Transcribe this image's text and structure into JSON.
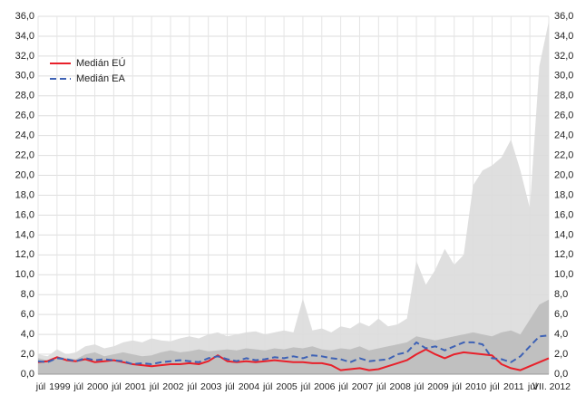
{
  "chart_data": {
    "type": "line",
    "categories": [
      "júl",
      null,
      "1999",
      null,
      "júl",
      null,
      "2000",
      null,
      "júl",
      null,
      "2001",
      null,
      "júl",
      null,
      "2002",
      null,
      "júl",
      null,
      "2003",
      null,
      "júl",
      null,
      "2004",
      null,
      "júl",
      null,
      "2005",
      null,
      "júl",
      null,
      "2006",
      null,
      "júl",
      null,
      "2007",
      null,
      "júl",
      null,
      "2008",
      null,
      "júl",
      null,
      "2009",
      null,
      "júl",
      null,
      "2010",
      null,
      "júl",
      null,
      "2011",
      null,
      "júl",
      null,
      "VII. 2012"
    ],
    "ylim": [
      0,
      36
    ],
    "yticks": [
      {
        "value": 0,
        "label": "0,0"
      },
      {
        "value": 2,
        "label": "2,0"
      },
      {
        "value": 4,
        "label": "4,0"
      },
      {
        "value": 6,
        "label": "6,0"
      },
      {
        "value": 8,
        "label": "8,0"
      },
      {
        "value": 10,
        "label": "10,0"
      },
      {
        "value": 12,
        "label": "12,0"
      },
      {
        "value": 14,
        "label": "14,0"
      },
      {
        "value": 16,
        "label": "16,0"
      },
      {
        "value": 18,
        "label": "18,0"
      },
      {
        "value": 20,
        "label": "20,0"
      },
      {
        "value": 22,
        "label": "22,0"
      },
      {
        "value": 24,
        "label": "24,0"
      },
      {
        "value": 26,
        "label": "26,0"
      },
      {
        "value": 28,
        "label": "28,0"
      },
      {
        "value": 30,
        "label": "30,0"
      },
      {
        "value": 32,
        "label": "32,0"
      },
      {
        "value": 34,
        "label": "34,0"
      },
      {
        "value": 36,
        "label": "36,0"
      }
    ],
    "y2lim": [
      0,
      36
    ],
    "y2ticks": [
      {
        "value": 0,
        "label": "0,0"
      },
      {
        "value": 2,
        "label": "2,0"
      },
      {
        "value": 4,
        "label": "4,0"
      },
      {
        "value": 6,
        "label": "6,0"
      },
      {
        "value": 8,
        "label": "8,0"
      },
      {
        "value": 10,
        "label": "10,0"
      },
      {
        "value": 12,
        "label": "12,0"
      },
      {
        "value": 14,
        "label": "14,0"
      },
      {
        "value": 16,
        "label": "16,0"
      },
      {
        "value": 18,
        "label": "18,0"
      },
      {
        "value": 20,
        "label": "20,0"
      },
      {
        "value": 22,
        "label": "22,0"
      },
      {
        "value": 24,
        "label": "24,0"
      },
      {
        "value": 26,
        "label": "26,0"
      },
      {
        "value": 28,
        "label": "28,0"
      },
      {
        "value": 30,
        "label": "30,0"
      },
      {
        "value": 32,
        "label": "32,0"
      },
      {
        "value": 34,
        "label": "34,0"
      },
      {
        "value": 36,
        "label": "36,0"
      }
    ],
    "grid": true,
    "legend": "upper-left",
    "areas": [
      {
        "color": "#dcdcdc",
        "values": [
          2.0,
          1.8,
          2.5,
          2.0,
          2.2,
          2.8,
          3.0,
          2.6,
          2.8,
          3.2,
          3.4,
          3.2,
          3.6,
          3.4,
          3.3,
          3.6,
          3.8,
          3.6,
          4.0,
          4.2,
          3.8,
          4.0,
          4.2,
          4.3,
          4.0,
          4.2,
          4.4,
          4.2,
          7.6,
          4.4,
          4.6,
          4.2,
          4.8,
          4.6,
          5.2,
          4.8,
          5.6,
          4.8,
          5.0,
          5.6,
          11.4,
          9.0,
          10.5,
          12.6,
          11.0,
          12.0,
          19.0,
          20.5,
          21.0,
          21.8,
          23.6,
          20.5,
          16.7,
          31.0,
          35.5
        ]
      },
      {
        "color": "#bdbdbd",
        "values": [
          1.6,
          1.4,
          1.8,
          1.6,
          1.5,
          2.0,
          2.2,
          1.8,
          2.0,
          2.2,
          2.0,
          1.8,
          1.9,
          2.2,
          2.4,
          2.2,
          2.3,
          2.5,
          2.3,
          2.4,
          2.5,
          2.4,
          2.6,
          2.5,
          2.4,
          2.6,
          2.5,
          2.7,
          2.6,
          2.8,
          2.5,
          2.4,
          2.6,
          2.5,
          2.8,
          2.4,
          2.6,
          2.8,
          3.0,
          3.2,
          3.8,
          3.6,
          3.4,
          3.6,
          3.8,
          4.0,
          4.2,
          4.0,
          3.8,
          4.2,
          4.4,
          4.0,
          5.5,
          7.0,
          7.5
        ]
      }
    ],
    "series": [
      {
        "name": "Medián EÚ",
        "color": "#e8202a",
        "dashed": false,
        "values": [
          1.2,
          1.3,
          1.7,
          1.4,
          1.3,
          1.5,
          1.2,
          1.3,
          1.4,
          1.2,
          1.0,
          0.9,
          0.8,
          0.9,
          1.0,
          1.0,
          1.1,
          1.0,
          1.3,
          1.9,
          1.3,
          1.2,
          1.3,
          1.2,
          1.3,
          1.4,
          1.3,
          1.2,
          1.2,
          1.1,
          1.1,
          0.9,
          0.4,
          0.5,
          0.6,
          0.4,
          0.5,
          0.8,
          1.1,
          1.4,
          2.0,
          2.5,
          2.0,
          1.6,
          2.0,
          2.2,
          2.1,
          2.0,
          1.9,
          1.0,
          0.6,
          0.4,
          0.8,
          1.2,
          1.6
        ]
      },
      {
        "name": "Medián EA",
        "color": "#3e62b5",
        "dashed": true,
        "values": [
          1.3,
          1.2,
          1.6,
          1.5,
          1.3,
          1.6,
          1.4,
          1.5,
          1.4,
          1.3,
          1.0,
          1.1,
          1.0,
          1.2,
          1.3,
          1.4,
          1.3,
          1.2,
          1.6,
          1.8,
          1.5,
          1.3,
          1.6,
          1.4,
          1.5,
          1.7,
          1.6,
          1.8,
          1.6,
          1.9,
          1.8,
          1.6,
          1.5,
          1.2,
          1.6,
          1.3,
          1.4,
          1.5,
          2.0,
          2.2,
          3.2,
          2.6,
          2.8,
          2.4,
          2.8,
          3.2,
          3.2,
          3.0,
          1.6,
          1.5,
          1.2,
          1.8,
          2.8,
          3.8,
          3.9
        ]
      }
    ]
  }
}
